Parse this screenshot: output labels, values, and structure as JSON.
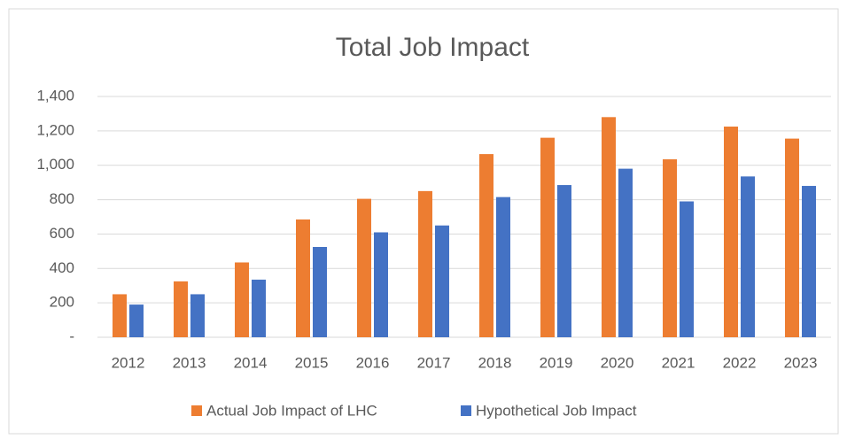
{
  "chart_data": {
    "type": "bar",
    "title": "Total Job Impact",
    "categories": [
      "2012",
      "2013",
      "2014",
      "2015",
      "2016",
      "2017",
      "2018",
      "2019",
      "2020",
      "2021",
      "2022",
      "2023"
    ],
    "series": [
      {
        "name": "Actual Job Impact of LHC",
        "color": "#ed7d31",
        "values": [
          250,
          325,
          435,
          685,
          805,
          850,
          1065,
          1160,
          1280,
          1035,
          1225,
          1155
        ]
      },
      {
        "name": "Hypothetical Job Impact",
        "color": "#4472c4",
        "values": [
          190,
          250,
          335,
          525,
          610,
          650,
          815,
          885,
          980,
          790,
          935,
          880
        ]
      }
    ],
    "ylim": [
      0,
      1400
    ],
    "yticks": [
      {
        "value": 0,
        "label": "-"
      },
      200,
      400,
      600,
      800,
      {
        "value": 1000,
        "label": "1,000"
      },
      {
        "value": 1200,
        "label": "1,200"
      },
      {
        "value": 1400,
        "label": "1,400"
      }
    ],
    "grid": true,
    "legend": "bottom"
  }
}
